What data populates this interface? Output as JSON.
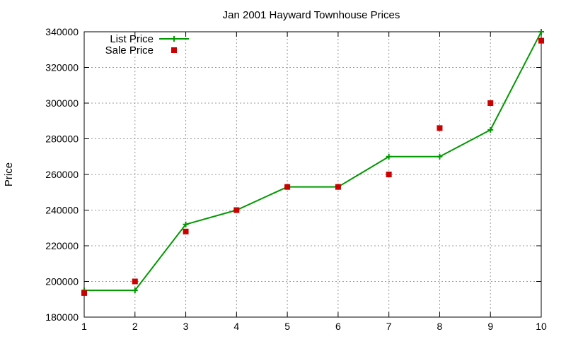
{
  "chart_data": {
    "type": "line",
    "title": "Jan 2001 Hayward Townhouse Prices",
    "xlabel": "",
    "ylabel": "Price",
    "xlim": [
      1,
      10
    ],
    "ylim": [
      180000,
      340000
    ],
    "x_ticks": [
      "1",
      "2",
      "3",
      "4",
      "5",
      "6",
      "7",
      "8",
      "9",
      "10"
    ],
    "y_ticks": [
      "180000",
      "200000",
      "220000",
      "240000",
      "260000",
      "280000",
      "300000",
      "320000",
      "340000"
    ],
    "grid": true,
    "legend_position": "top-left",
    "series": [
      {
        "name": "List Price",
        "style": "line+cross",
        "color": "#009900",
        "x": [
          1,
          2,
          3,
          4,
          5,
          6,
          7,
          8,
          9,
          10
        ],
        "values": [
          195000,
          195000,
          232000,
          240000,
          253000,
          253000,
          270000,
          270000,
          285000,
          340000
        ]
      },
      {
        "name": "Sale Price",
        "style": "square",
        "color": "#cc0000",
        "x": [
          1,
          2,
          3,
          4,
          5,
          6,
          7,
          8,
          9,
          10
        ],
        "values": [
          193500,
          200000,
          228000,
          240000,
          253000,
          253000,
          260000,
          286000,
          300000,
          335000
        ]
      }
    ]
  }
}
